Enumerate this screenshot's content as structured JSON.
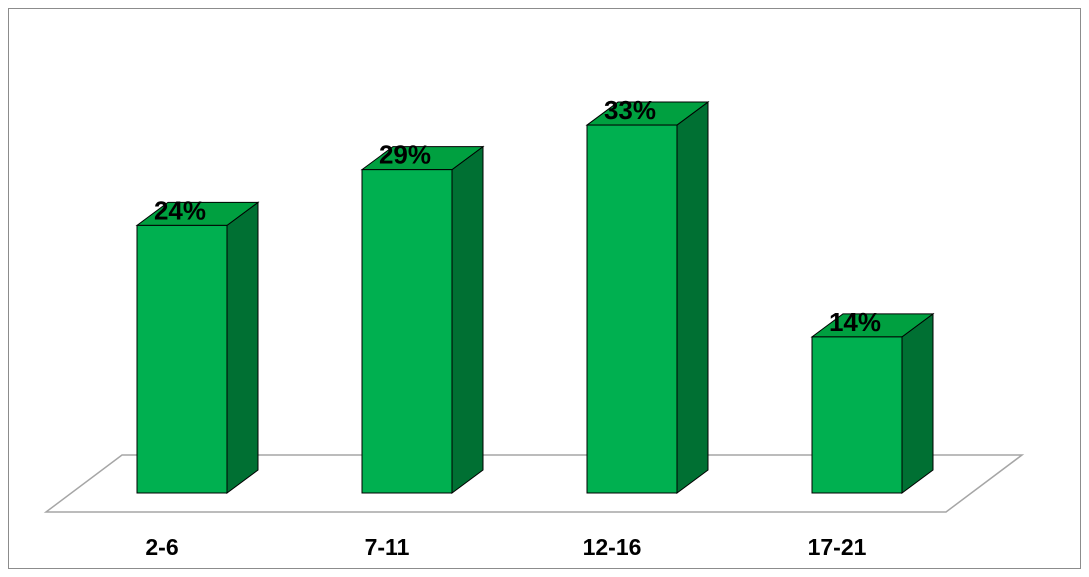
{
  "chart_data": {
    "type": "bar",
    "style": "3d-column",
    "title": "",
    "xlabel": "",
    "ylabel": "",
    "categories": [
      "2-6",
      "7-11",
      "12-16",
      "17-21"
    ],
    "values": [
      24,
      29,
      33,
      14
    ],
    "value_labels": [
      "24%",
      "29%",
      "33%",
      "14%"
    ],
    "unit": "%",
    "ylim": [
      0,
      40
    ],
    "grid": false,
    "legend": "none",
    "colors": {
      "bar_front": "#00b050",
      "bar_side": "#007033",
      "bar_top": "#00a040",
      "floor_stroke": "#a6a6a6",
      "border": "#8c8c8c"
    }
  }
}
